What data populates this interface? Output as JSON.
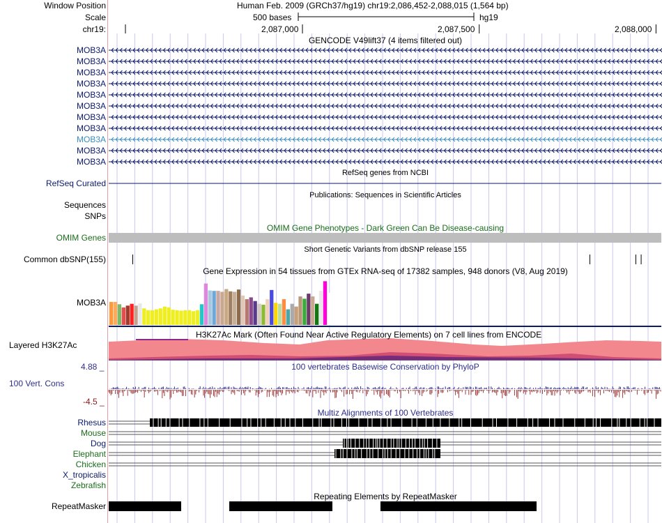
{
  "header": {
    "window_position_label": "Window Position",
    "scale_label": "Scale",
    "chrom_label": "chr19:",
    "position_text": "Human Feb. 2009 (GRCh37/hg19)   chr19:2,086,452-2,088,015 (1,564 bp)",
    "scale_text": "500 bases",
    "assembly": "hg19",
    "ruler": [
      {
        "pos": 2087000,
        "label": "2,087,000"
      },
      {
        "pos": 2087500,
        "label": "2,087,500"
      },
      {
        "pos": 2088000,
        "label": "2,088,000"
      }
    ]
  },
  "region": {
    "start": 2086452,
    "end": 2088015
  },
  "colors": {
    "gene": "#0b1a6b",
    "gene_highlight": "#3b8ec2",
    "omim": "#1a6d1a",
    "conservation": "#2e2e8c",
    "conservation_bottom": "#8b1a1a",
    "h3k27ac": "#f2878d",
    "grid": "#c8c8f0",
    "gutter": "#e2a0a0"
  },
  "gencode": {
    "title": "GENCODE V49lift37 (4 items filtered out)",
    "genes": [
      "MOB3A",
      "MOB3A",
      "MOB3A",
      "MOB3A",
      "MOB3A",
      "MOB3A",
      "MOB3A",
      "MOB3A",
      "MOB3A",
      "MOB3A",
      "MOB3A"
    ],
    "highlight_index": 8
  },
  "refseq": {
    "title": "RefSeq genes from NCBI",
    "label": "RefSeq Curated"
  },
  "publications": {
    "title": "Publications: Sequences in Scientific Articles",
    "sequences_label": "Sequences",
    "snps_label": "SNPs"
  },
  "omim": {
    "title": "OMIM Gene Phenotypes - Dark Green Can Be Disease-causing",
    "label": "OMIM Genes"
  },
  "dbsnp": {
    "title": "Short Genetic Variants from dbSNP release 155",
    "label": "Common dbSNP(155)",
    "variants": [
      2086520,
      2087813,
      2087943,
      2087958
    ]
  },
  "gtex": {
    "title": "Gene Expression in 54 tissues from GTEx RNA-seq of 17382 samples, 948 donors (V8, Aug 2019)",
    "label": "MOB3A",
    "values": [
      0.5,
      0.5,
      0.45,
      0.38,
      0.42,
      0.46,
      0.42,
      0.47,
      0.36,
      0.32,
      0.32,
      0.34,
      0.36,
      0.4,
      0.38,
      0.33,
      0.32,
      0.31,
      0.32,
      0.32,
      0.3,
      0.32,
      0.45,
      0.9,
      0.75,
      0.74,
      0.74,
      0.72,
      0.78,
      0.73,
      0.72,
      0.77,
      0.64,
      0.56,
      0.6,
      0.52,
      0.46,
      0.44,
      0.56,
      0.76,
      0.48,
      0.46,
      0.56,
      0.34,
      0.46,
      0.4,
      0.62,
      0.57,
      0.68,
      0.62,
      0.46,
      0.74,
      0.95,
      0.7
    ],
    "colors": [
      "#ff9a3c",
      "#ffab5e",
      "#7fba6b",
      "#e44e4e",
      "#a03a2c",
      "#ff2020",
      "#c5a290",
      "#e8e8e8",
      "#eeee22",
      "#eeee22",
      "#eeee22",
      "#eeee22",
      "#eeee22",
      "#eeee22",
      "#eeee22",
      "#eeee22",
      "#eeee22",
      "#eeee22",
      "#eeee22",
      "#eeee22",
      "#eeee22",
      "#eeee22",
      "#22c8c8",
      "#dd88dd",
      "#a8c8e0",
      "#6ea8d8",
      "#c8a8a0",
      "#c8a890",
      "#c8a880",
      "#a08060",
      "#c8b098",
      "#8b6b4b",
      "#e0c8b8",
      "#b87870",
      "#8b4a8b",
      "#5a3a8b",
      "#d0c8c0",
      "#8bbb33",
      "#f0d0b8",
      "#4a4ae0",
      "#ffd700",
      "#b8e0a0",
      "#ff8c42",
      "#4aa8a8",
      "#aaaaaa",
      "#c8a078",
      "#b89878",
      "#3aaa3a",
      "#6b3a6b",
      "#c8a890",
      "#117711",
      "#e8e8e8",
      "#ff00dd",
      "#ffffff"
    ]
  },
  "h3k27ac": {
    "title": "H3K27Ac Mark (Often Found Near Active Regulatory Elements) on 7 cell lines from ENCODE",
    "label": "Layered H3K27Ac"
  },
  "phylop": {
    "title": "100 vertebrates Basewise Conservation by PhyloP",
    "label": "100 Vert. Cons",
    "max_label": "4.88 _",
    "min_label": "-4.5 _"
  },
  "multiz": {
    "title": "Multiz Alignments of 100 Vertebrates",
    "species": [
      {
        "name": "Rhesus",
        "color": "#0b1a6b"
      },
      {
        "name": "Mouse",
        "color": "#1a6d1a"
      },
      {
        "name": "Dog",
        "color": "#0b1a6b"
      },
      {
        "name": "Elephant",
        "color": "#1a6d1a"
      },
      {
        "name": "Chicken",
        "color": "#1a6d1a"
      },
      {
        "name": "X_tropicalis",
        "color": "#0b1a6b"
      },
      {
        "name": "Zebrafish",
        "color": "#1a6d1a"
      }
    ]
  },
  "repeatmasker": {
    "title": "Repeating Elements by RepeatMasker",
    "label": "RepeatMasker"
  }
}
